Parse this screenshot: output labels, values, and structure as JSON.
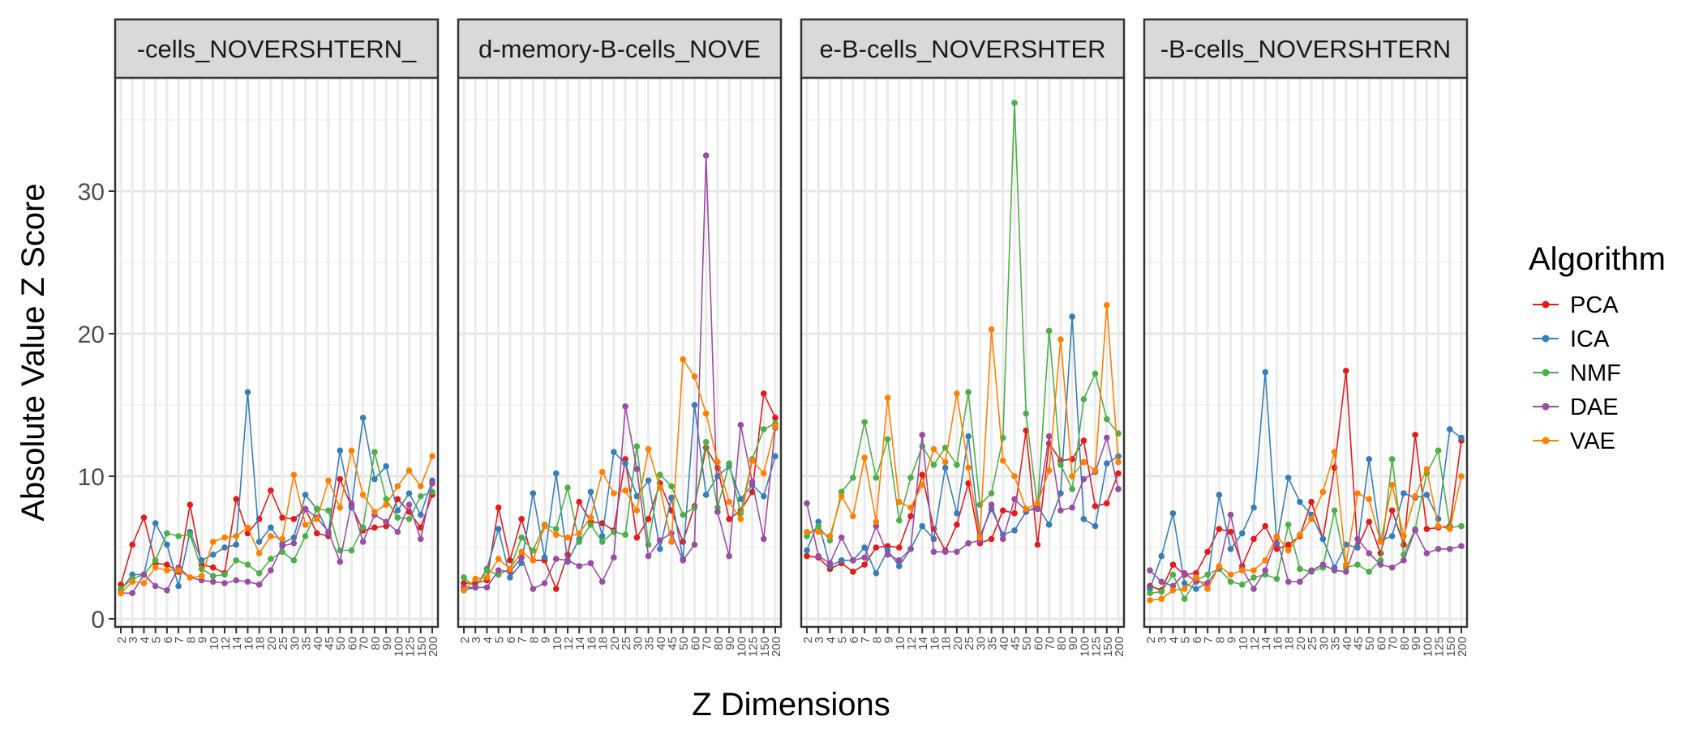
{
  "chart_data": {
    "type": "line",
    "ylabel": "Absolute Value Z Score",
    "xlabel": "Z Dimensions",
    "ylim": [
      0,
      38
    ],
    "y_ticks": [
      0,
      10,
      20,
      30
    ],
    "grid": true,
    "legend": {
      "title": "Algorithm",
      "placement": "right",
      "items": [
        {
          "name": "PCA",
          "color": "#e41a1c"
        },
        {
          "name": "ICA",
          "color": "#377eb8"
        },
        {
          "name": "NMF",
          "color": "#4daf4a"
        },
        {
          "name": "DAE",
          "color": "#984ea3"
        },
        {
          "name": "VAE",
          "color": "#ff7f00"
        }
      ]
    },
    "categories": [
      "2",
      "3",
      "4",
      "5",
      "6",
      "7",
      "8",
      "9",
      "10",
      "12",
      "14",
      "16",
      "18",
      "20",
      "25",
      "30",
      "35",
      "40",
      "45",
      "50",
      "60",
      "70",
      "80",
      "90",
      "100",
      "125",
      "150",
      "200"
    ],
    "panels": [
      {
        "strip": "-cells_NOVERSHTERN_",
        "series": [
          {
            "name": "PCA",
            "values": [
              2.4,
              5.2,
              7.1,
              3.9,
              3.8,
              3.3,
              8.0,
              3.8,
              3.6,
              3.2,
              8.4,
              6.0,
              7.0,
              9.0,
              7.1,
              7.0,
              7.7,
              6.0,
              5.8,
              9.8,
              7.9,
              6.2,
              6.4,
              6.5,
              8.4,
              7.5,
              6.4,
              8.7
            ]
          },
          {
            "name": "ICA",
            "values": [
              2.0,
              3.1,
              3.1,
              6.7,
              5.2,
              2.3,
              6.1,
              4.1,
              4.5,
              5.0,
              5.2,
              15.9,
              5.4,
              6.4,
              5.3,
              5.7,
              8.7,
              7.7,
              6.0,
              11.8,
              7.8,
              14.1,
              9.8,
              10.7,
              7.6,
              8.8,
              7.3,
              9.7
            ]
          },
          {
            "name": "NMF",
            "values": [
              2.1,
              2.8,
              3.1,
              4.1,
              6.0,
              5.8,
              5.9,
              3.5,
              3.0,
              3.1,
              4.1,
              3.8,
              3.2,
              4.2,
              4.7,
              4.1,
              5.8,
              7.7,
              7.6,
              4.8,
              4.8,
              6.4,
              11.7,
              8.4,
              7.1,
              7.0,
              8.6,
              8.9
            ]
          },
          {
            "name": "DAE",
            "values": [
              1.8,
              1.8,
              3.1,
              2.3,
              2.0,
              3.6,
              2.9,
              2.7,
              2.6,
              2.5,
              2.7,
              2.6,
              2.4,
              3.4,
              5.1,
              5.3,
              7.7,
              7.1,
              6.1,
              4.0,
              8.1,
              5.4,
              7.3,
              6.8,
              6.1,
              8.0,
              5.6,
              9.5
            ]
          },
          {
            "name": "VAE",
            "values": [
              1.8,
              2.6,
              2.5,
              3.6,
              3.4,
              3.4,
              2.9,
              3.0,
              5.4,
              5.7,
              5.8,
              6.4,
              4.6,
              5.8,
              5.6,
              10.1,
              6.6,
              7.0,
              9.7,
              7.8,
              11.8,
              8.7,
              7.5,
              8.0,
              9.3,
              10.4,
              9.3,
              11.4
            ]
          }
        ]
      },
      {
        "strip": "d-memory-B-cells_NOVE",
        "series": [
          {
            "name": "PCA",
            "values": [
              2.5,
              2.5,
              2.7,
              7.8,
              4.1,
              7.0,
              4.1,
              4.1,
              2.1,
              4.5,
              8.2,
              6.8,
              6.7,
              6.2,
              11.2,
              5.7,
              7.0,
              9.5,
              7.6,
              5.4,
              7.9,
              12.0,
              10.6,
              7.0,
              7.6,
              8.9,
              15.8,
              14.1
            ]
          },
          {
            "name": "ICA",
            "values": [
              2.0,
              2.2,
              3.5,
              6.3,
              2.9,
              3.9,
              8.8,
              4.3,
              10.2,
              4.0,
              5.6,
              8.9,
              5.8,
              11.7,
              10.9,
              8.6,
              9.7,
              4.9,
              8.5,
              4.2,
              15.0,
              8.7,
              10.0,
              10.7,
              8.4,
              9.4,
              8.6,
              11.4
            ]
          },
          {
            "name": "NMF",
            "values": [
              2.9,
              2.2,
              3.4,
              3.1,
              3.5,
              5.7,
              4.8,
              6.6,
              6.3,
              9.2,
              5.4,
              6.6,
              5.4,
              6.1,
              5.9,
              12.1,
              5.2,
              10.1,
              9.3,
              7.3,
              7.8,
              12.4,
              7.8,
              10.9,
              7.4,
              11.2,
              13.3,
              13.7
            ]
          },
          {
            "name": "DAE",
            "values": [
              2.2,
              2.2,
              2.2,
              3.4,
              3.3,
              4.3,
              2.1,
              2.5,
              4.2,
              4.1,
              3.7,
              3.9,
              2.6,
              4.3,
              14.9,
              10.5,
              4.4,
              5.5,
              6.0,
              4.1,
              5.2,
              32.5,
              7.5,
              4.4,
              13.6,
              9.6,
              5.6,
              13.4
            ]
          },
          {
            "name": "VAE",
            "values": [
              2.0,
              2.8,
              2.9,
              4.2,
              3.5,
              4.7,
              4.1,
              6.5,
              5.9,
              5.7,
              6.0,
              7.1,
              10.3,
              8.8,
              9.0,
              7.6,
              11.9,
              9.2,
              5.4,
              18.2,
              17.0,
              14.4,
              11.0,
              8.2,
              7.0,
              11.1,
              10.2,
              13.5
            ]
          }
        ]
      },
      {
        "strip": "e-B-cells_NOVERSHTER",
        "series": [
          {
            "name": "PCA",
            "values": [
              4.4,
              4.3,
              3.5,
              3.9,
              3.3,
              3.8,
              5.0,
              5.1,
              5.0,
              7.2,
              10.1,
              6.3,
              4.8,
              6.6,
              9.5,
              5.3,
              5.6,
              7.6,
              7.4,
              13.2,
              5.2,
              12.3,
              11.1,
              11.2,
              12.5,
              7.9,
              8.1,
              10.2
            ]
          },
          {
            "name": "ICA",
            "values": [
              4.8,
              6.8,
              3.7,
              4.1,
              4.1,
              5.0,
              3.2,
              4.8,
              3.7,
              4.9,
              6.5,
              5.6,
              10.6,
              7.4,
              12.8,
              5.8,
              7.7,
              5.9,
              6.2,
              7.5,
              7.9,
              6.6,
              8.8,
              21.2,
              7.0,
              6.5,
              10.9,
              11.4
            ]
          },
          {
            "name": "NMF",
            "values": [
              5.8,
              6.5,
              5.5,
              8.9,
              9.9,
              13.8,
              9.9,
              12.6,
              6.9,
              9.9,
              12.1,
              10.8,
              12.0,
              10.8,
              15.9,
              8.0,
              8.8,
              12.7,
              36.2,
              14.4,
              7.8,
              20.2,
              10.8,
              9.1,
              15.4,
              17.2,
              14.0,
              13.0
            ]
          },
          {
            "name": "DAE",
            "values": [
              8.1,
              4.4,
              3.9,
              5.7,
              4.1,
              4.3,
              6.5,
              4.5,
              4.1,
              4.9,
              12.9,
              4.7,
              4.7,
              4.7,
              5.3,
              5.5,
              8.0,
              5.6,
              8.4,
              7.6,
              7.7,
              12.8,
              7.6,
              7.8,
              9.8,
              10.3,
              12.7,
              9.1
            ]
          },
          {
            "name": "VAE",
            "values": [
              6.1,
              6.1,
              5.8,
              8.6,
              7.2,
              11.3,
              6.8,
              15.5,
              8.2,
              7.8,
              9.4,
              11.9,
              11.0,
              15.8,
              10.6,
              5.7,
              20.3,
              11.1,
              10.0,
              7.7,
              8.1,
              10.4,
              19.6,
              10.0,
              11.0,
              10.4,
              22.0,
              11.0
            ]
          }
        ]
      },
      {
        "strip": "-B-cells_NOVERSHTERN",
        "series": [
          {
            "name": "PCA",
            "values": [
              2.3,
              2.0,
              3.8,
              3.1,
              3.2,
              4.7,
              6.3,
              6.1,
              3.7,
              5.6,
              6.5,
              4.9,
              5.2,
              5.8,
              8.2,
              5.6,
              10.6,
              17.4,
              5.0,
              6.8,
              4.6,
              7.6,
              5.2,
              12.9,
              6.3,
              6.4,
              6.5,
              12.5
            ]
          },
          {
            "name": "ICA",
            "values": [
              2.1,
              4.4,
              7.4,
              2.5,
              2.1,
              2.5,
              8.7,
              4.9,
              6.0,
              7.8,
              17.3,
              5.3,
              9.9,
              8.2,
              7.3,
              5.6,
              3.6,
              5.2,
              5.0,
              11.2,
              5.5,
              5.8,
              8.8,
              8.5,
              8.7,
              7.0,
              13.3,
              12.7
            ]
          },
          {
            "name": "NMF",
            "values": [
              1.8,
              1.9,
              3.1,
              1.4,
              2.7,
              3.1,
              3.5,
              2.6,
              2.4,
              2.9,
              3.1,
              2.8,
              6.6,
              3.5,
              3.3,
              3.6,
              7.6,
              3.6,
              3.8,
              3.3,
              4.1,
              11.2,
              4.5,
              6.3,
              10.2,
              11.8,
              6.4,
              6.5
            ]
          },
          {
            "name": "DAE",
            "values": [
              3.4,
              2.6,
              2.3,
              3.2,
              2.6,
              2.5,
              3.6,
              7.3,
              3.5,
              2.1,
              3.4,
              5.7,
              2.6,
              2.6,
              3.4,
              3.8,
              3.4,
              3.3,
              5.6,
              4.6,
              3.8,
              3.6,
              4.1,
              6.2,
              4.6,
              4.9,
              4.9,
              5.1
            ]
          },
          {
            "name": "VAE",
            "values": [
              1.3,
              1.4,
              2.0,
              2.1,
              2.9,
              2.1,
              3.7,
              3.1,
              3.4,
              3.4,
              4.1,
              5.8,
              4.8,
              5.9,
              7.0,
              8.9,
              11.7,
              3.8,
              8.8,
              8.4,
              5.4,
              9.4,
              5.8,
              8.6,
              10.5,
              6.5,
              6.3,
              10.0
            ]
          }
        ]
      }
    ]
  }
}
